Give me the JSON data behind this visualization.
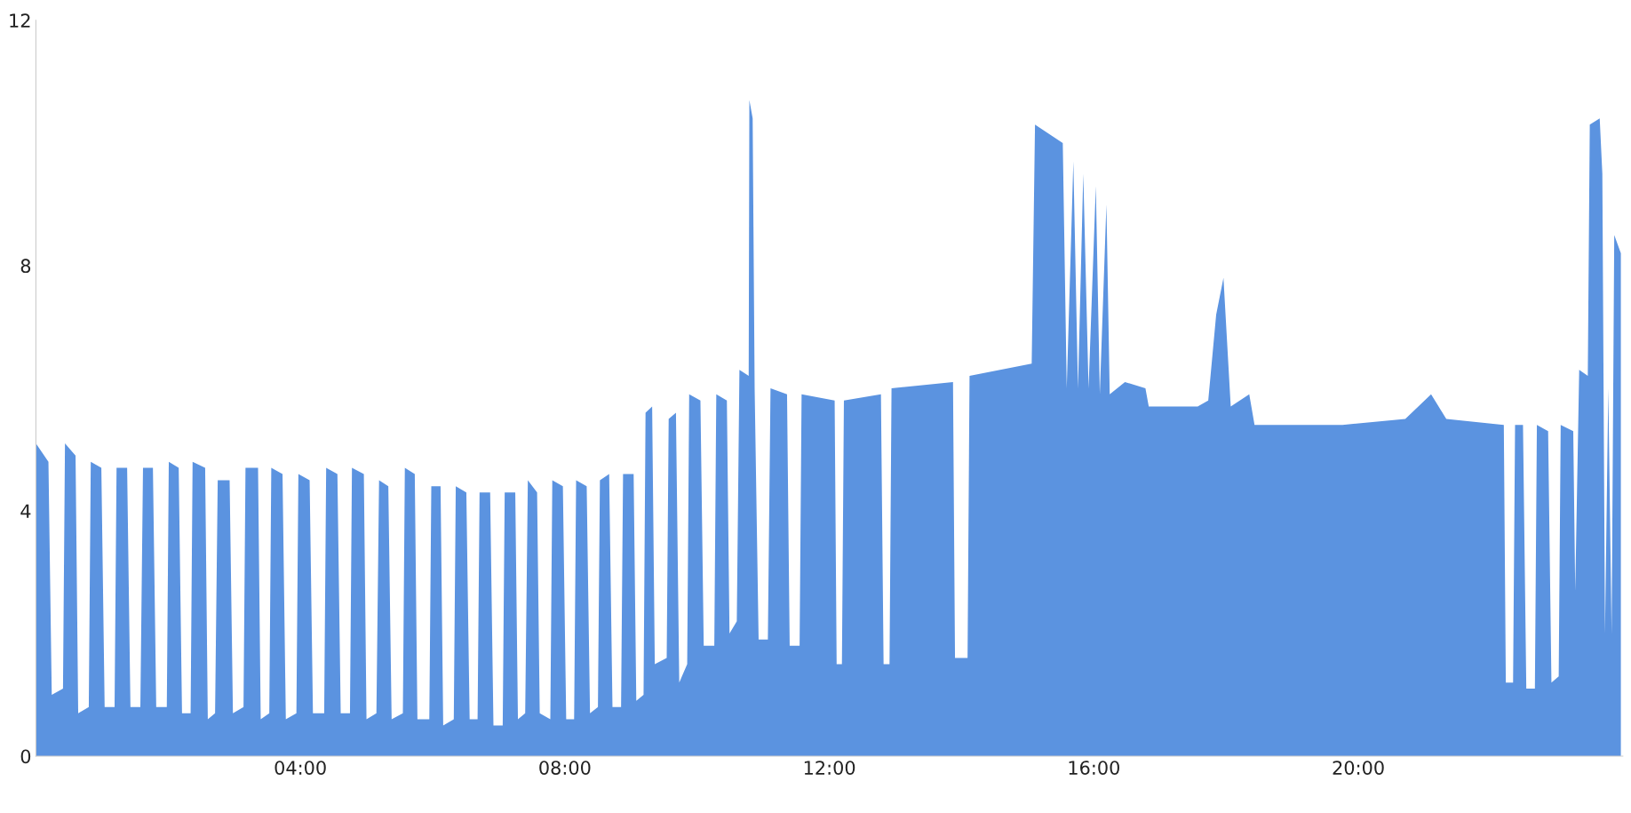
{
  "chart_data": {
    "type": "area",
    "xlim": [
      0,
      24
    ],
    "xticks": [
      {
        "value": 4,
        "label": "04:00"
      },
      {
        "value": 8,
        "label": "08:00"
      },
      {
        "value": 12,
        "label": "12:00"
      },
      {
        "value": 16,
        "label": "16:00"
      },
      {
        "value": 20,
        "label": "20:00"
      }
    ],
    "ylim": [
      0,
      12
    ],
    "yticks": [
      0,
      4,
      8,
      12
    ],
    "grid": false,
    "legend": false,
    "series": [
      {
        "color": "#5b93e0",
        "x": [
          0,
          0.19,
          0.24,
          0.41,
          0.44,
          0.6,
          0.64,
          0.8,
          0.83,
          0.99,
          1.04,
          1.19,
          1.22,
          1.38,
          1.43,
          1.58,
          1.62,
          1.77,
          1.82,
          1.98,
          2.01,
          2.16,
          2.21,
          2.34,
          2.37,
          2.56,
          2.6,
          2.71,
          2.75,
          2.93,
          2.98,
          3.14,
          3.17,
          3.36,
          3.4,
          3.53,
          3.56,
          3.73,
          3.78,
          3.94,
          3.97,
          4.14,
          4.19,
          4.36,
          4.39,
          4.56,
          4.61,
          4.75,
          4.78,
          4.96,
          5.0,
          5.15,
          5.19,
          5.33,
          5.38,
          5.55,
          5.58,
          5.73,
          5.77,
          5.95,
          5.98,
          6.12,
          6.16,
          6.32,
          6.35,
          6.51,
          6.56,
          6.68,
          6.71,
          6.87,
          6.92,
          7.06,
          7.09,
          7.25,
          7.29,
          7.4,
          7.44,
          7.58,
          7.62,
          7.78,
          7.81,
          7.97,
          8.02,
          8.14,
          8.17,
          8.33,
          8.38,
          8.5,
          8.53,
          8.67,
          8.72,
          8.85,
          8.88,
          9.04,
          9.08,
          9.19,
          9.22,
          9.32,
          9.36,
          9.54,
          9.57,
          9.68,
          9.73,
          9.85,
          9.88,
          10.05,
          10.1,
          10.26,
          10.29,
          10.45,
          10.49,
          10.6,
          10.64,
          10.78,
          10.79,
          10.84,
          10.87,
          10.93,
          11.07,
          11.11,
          11.36,
          11.4,
          11.55,
          11.58,
          12.08,
          12.11,
          12.19,
          12.22,
          12.78,
          12.82,
          12.91,
          12.94,
          13.87,
          13.9,
          14.09,
          14.12,
          15.06,
          15.11,
          15.53,
          15.59,
          15.69,
          15.76,
          15.84,
          15.92,
          16.03,
          16.09,
          16.19,
          16.24,
          16.47,
          16.78,
          16.83,
          17.57,
          17.73,
          17.85,
          17.96,
          18.07,
          18.35,
          18.43,
          19.76,
          20.71,
          21.1,
          21.33,
          22.2,
          22.23,
          22.34,
          22.37,
          22.49,
          22.54,
          22.67,
          22.7,
          22.87,
          22.92,
          23.03,
          23.06,
          23.25,
          23.28,
          23.34,
          23.47,
          23.5,
          23.65,
          23.69,
          23.73,
          23.78,
          23.83,
          23.87,
          23.97
        ],
        "values": [
          5.1,
          4.8,
          1.0,
          1.1,
          5.1,
          4.9,
          0.7,
          0.8,
          4.8,
          4.7,
          0.8,
          0.8,
          4.7,
          4.7,
          0.8,
          0.8,
          4.7,
          4.7,
          0.8,
          0.8,
          4.8,
          4.7,
          0.7,
          0.7,
          4.8,
          4.7,
          0.6,
          0.7,
          4.5,
          4.5,
          0.7,
          0.8,
          4.7,
          4.7,
          0.6,
          0.7,
          4.7,
          4.6,
          0.6,
          0.7,
          4.6,
          4.5,
          0.7,
          0.7,
          4.7,
          4.6,
          0.7,
          0.7,
          4.7,
          4.6,
          0.6,
          0.7,
          4.5,
          4.4,
          0.6,
          0.7,
          4.7,
          4.6,
          0.6,
          0.6,
          4.4,
          4.4,
          0.5,
          0.6,
          4.4,
          4.3,
          0.6,
          0.6,
          4.3,
          4.3,
          0.5,
          0.5,
          4.3,
          4.3,
          0.6,
          0.7,
          4.5,
          4.3,
          0.7,
          0.6,
          4.5,
          4.4,
          0.6,
          0.6,
          4.5,
          4.4,
          0.7,
          0.8,
          4.5,
          4.6,
          0.8,
          0.8,
          4.6,
          4.6,
          0.9,
          1.0,
          5.6,
          5.7,
          1.5,
          1.6,
          5.5,
          5.6,
          1.2,
          1.5,
          5.9,
          5.8,
          1.8,
          1.8,
          5.9,
          5.8,
          2.0,
          2.2,
          6.3,
          6.2,
          10.7,
          10.4,
          6.0,
          1.9,
          1.9,
          6.0,
          5.9,
          1.8,
          1.8,
          5.9,
          5.8,
          1.5,
          1.5,
          5.8,
          5.9,
          1.5,
          1.5,
          6.0,
          6.1,
          1.6,
          1.6,
          6.2,
          6.4,
          10.3,
          10.0,
          6.0,
          9.7,
          6.0,
          9.5,
          6.0,
          9.3,
          5.9,
          9.0,
          5.9,
          6.1,
          6.0,
          5.7,
          5.7,
          5.8,
          7.2,
          7.8,
          5.7,
          5.9,
          5.4,
          5.4,
          5.5,
          5.9,
          5.5,
          5.4,
          1.2,
          1.2,
          5.4,
          5.4,
          1.1,
          1.1,
          5.4,
          5.3,
          1.2,
          1.3,
          5.4,
          5.3,
          2.7,
          6.3,
          6.2,
          10.3,
          10.4,
          9.5,
          2.0,
          6.0,
          2.0,
          8.5,
          8.2
        ]
      }
    ]
  }
}
